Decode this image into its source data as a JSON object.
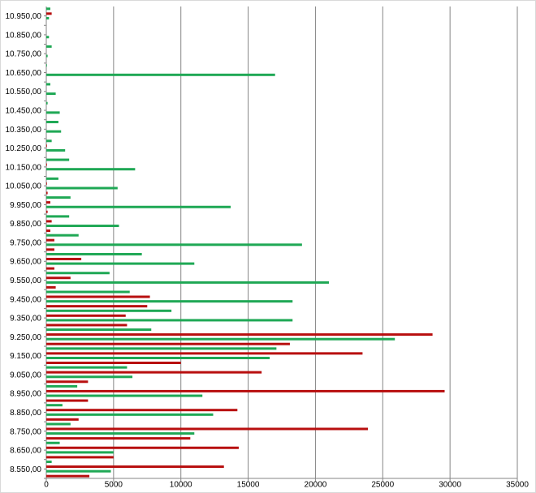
{
  "chart_data": {
    "type": "bar",
    "orientation": "horizontal",
    "categories": [
      "8.550,00",
      null,
      "8.650,00",
      null,
      "8.750,00",
      null,
      "8.850,00",
      null,
      "8.950,00",
      null,
      "9.050,00",
      null,
      "9.150,00",
      null,
      "9.250,00",
      null,
      "9.350,00",
      null,
      "9.450,00",
      null,
      "9.550,00",
      null,
      "9.650,00",
      null,
      "9.750,00",
      null,
      "9.850,00",
      null,
      "9.950,00",
      null,
      "10.050,00",
      null,
      "10.150,00",
      null,
      "10.250,00",
      null,
      "10.350,00",
      null,
      "10.450,00",
      null,
      "10.550,00",
      null,
      "10.650,00",
      null,
      "10.750,00",
      null,
      "10.850,00",
      null,
      "10.950,00",
      null
    ],
    "series": [
      {
        "color": "#b80f0f",
        "values": [
          3200,
          13200,
          5000,
          14300,
          10700,
          23900,
          2400,
          14200,
          3100,
          29600,
          3100,
          16000,
          10000,
          23500,
          18100,
          28700,
          6000,
          5900,
          7500,
          7700,
          700,
          1800,
          600,
          2600,
          600,
          600,
          300,
          400,
          100,
          300,
          100,
          50,
          0,
          50,
          0,
          50,
          0,
          0,
          0,
          0,
          0,
          0,
          0,
          0,
          0,
          0,
          0,
          0,
          0,
          400
        ]
      },
      {
        "color": "#1fa855",
        "values": [
          4800,
          400,
          5000,
          1000,
          11000,
          1800,
          12400,
          1200,
          11600,
          2300,
          6400,
          6000,
          16600,
          17100,
          25900,
          7800,
          18300,
          9300,
          18300,
          6200,
          21000,
          4700,
          11000,
          7100,
          19000,
          2400,
          5400,
          1700,
          13700,
          1800,
          5300,
          900,
          6600,
          1700,
          1400,
          400,
          1100,
          900,
          1000,
          100,
          700,
          300,
          17000,
          50,
          100,
          400,
          200,
          0,
          200,
          300
        ]
      }
    ],
    "xlim": [
      0,
      35000
    ],
    "xticks": [
      0,
      5000,
      10000,
      15000,
      20000,
      25000,
      30000,
      35000
    ],
    "grid": true
  }
}
